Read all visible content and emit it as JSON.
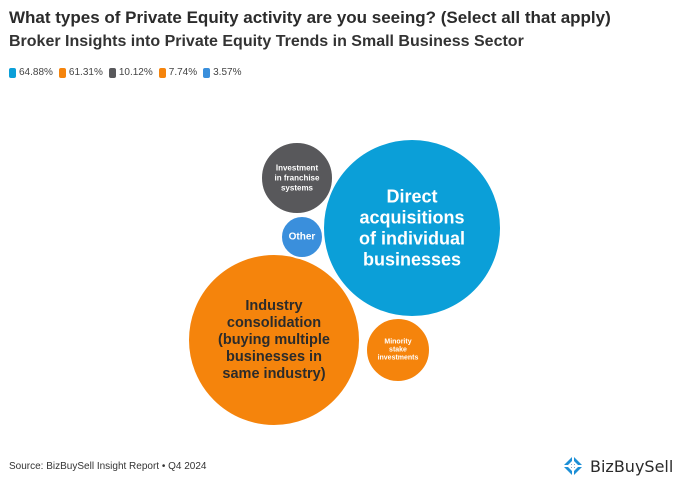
{
  "header": {
    "title": "What types of Private Equity activity are you seeing? (Select all that apply)",
    "subtitle": "Broker Insights into Private Equity Trends in Small Business Sector"
  },
  "chart_data": {
    "type": "bubble",
    "series": [
      {
        "name": "Direct acquisitions of individual businesses",
        "value": 64.88,
        "legend_label": "64.88%",
        "lines": [
          "Direct",
          "acquisitions",
          "of individual",
          "businesses"
        ],
        "color": "#0b9fd8"
      },
      {
        "name": "Industry consolidation (buying multiple businesses in same industry)",
        "value": 61.31,
        "legend_label": "61.31%",
        "lines": [
          "Industry",
          "consolidation",
          "(buying multiple",
          "businesses in",
          "same industry)"
        ],
        "color": "#f5840c"
      },
      {
        "name": "Investment in franchise systems",
        "value": 10.12,
        "legend_label": "10.12%",
        "lines": [
          "Investment",
          "in franchise",
          "systems"
        ],
        "color": "#58585b"
      },
      {
        "name": "Minority stake investments",
        "value": 7.74,
        "legend_label": "7.74%",
        "lines": [
          "Minority",
          "stake",
          "investments"
        ],
        "color": "#f5840c"
      },
      {
        "name": "Other",
        "value": 3.57,
        "legend_label": "3.57%",
        "lines": [
          "Other"
        ],
        "color": "#3a8fdc"
      }
    ]
  },
  "footer": {
    "source": "Source: BizBuySell Insight Report • Q4 2024",
    "brand": "BizBuySell"
  },
  "colors": {
    "brand_blue": "#1d8fd6",
    "brand_dark": "#0d4f8b"
  },
  "icons": {
    "brand_logo": "bizbuysell-logo-icon"
  }
}
